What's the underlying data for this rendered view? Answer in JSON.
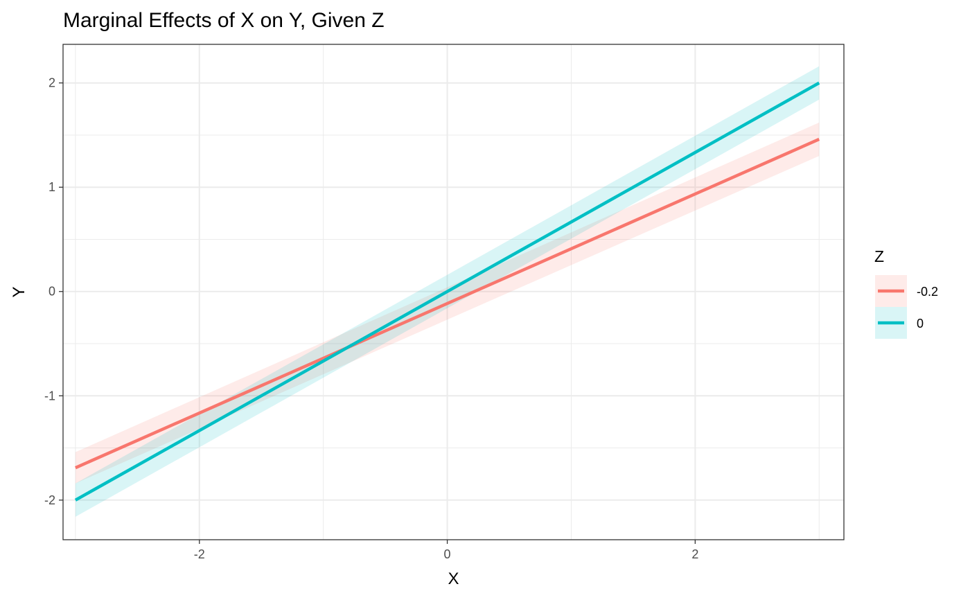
{
  "chart_data": {
    "type": "line",
    "title": "Marginal Effects of X on Y, Given Z",
    "xlabel": "X",
    "ylabel": "Y",
    "xlim": [
      -3.1,
      3.2
    ],
    "ylim": [
      -2.38,
      2.37
    ],
    "x_ticks": [
      -2,
      0,
      2
    ],
    "y_ticks": [
      -2,
      -1,
      0,
      1,
      2
    ],
    "x_tick_labels": [
      "-2",
      "0",
      "2"
    ],
    "y_tick_labels": [
      "-2",
      "-1",
      "0",
      "1",
      "2"
    ],
    "grid": true,
    "legend": {
      "title": "Z",
      "position": "right"
    },
    "series": [
      {
        "name": "-0.2",
        "color": "#F8766D",
        "x": [
          -3,
          3
        ],
        "y": [
          -1.69,
          1.46
        ],
        "lower": [
          -1.84,
          1.3
        ],
        "upper": [
          -1.54,
          1.62
        ]
      },
      {
        "name": "0",
        "color": "#00BFC4",
        "x": [
          -3,
          3
        ],
        "y": [
          -2.0,
          2.0
        ],
        "lower": [
          -2.16,
          1.84
        ],
        "upper": [
          -1.84,
          2.16
        ]
      }
    ]
  }
}
